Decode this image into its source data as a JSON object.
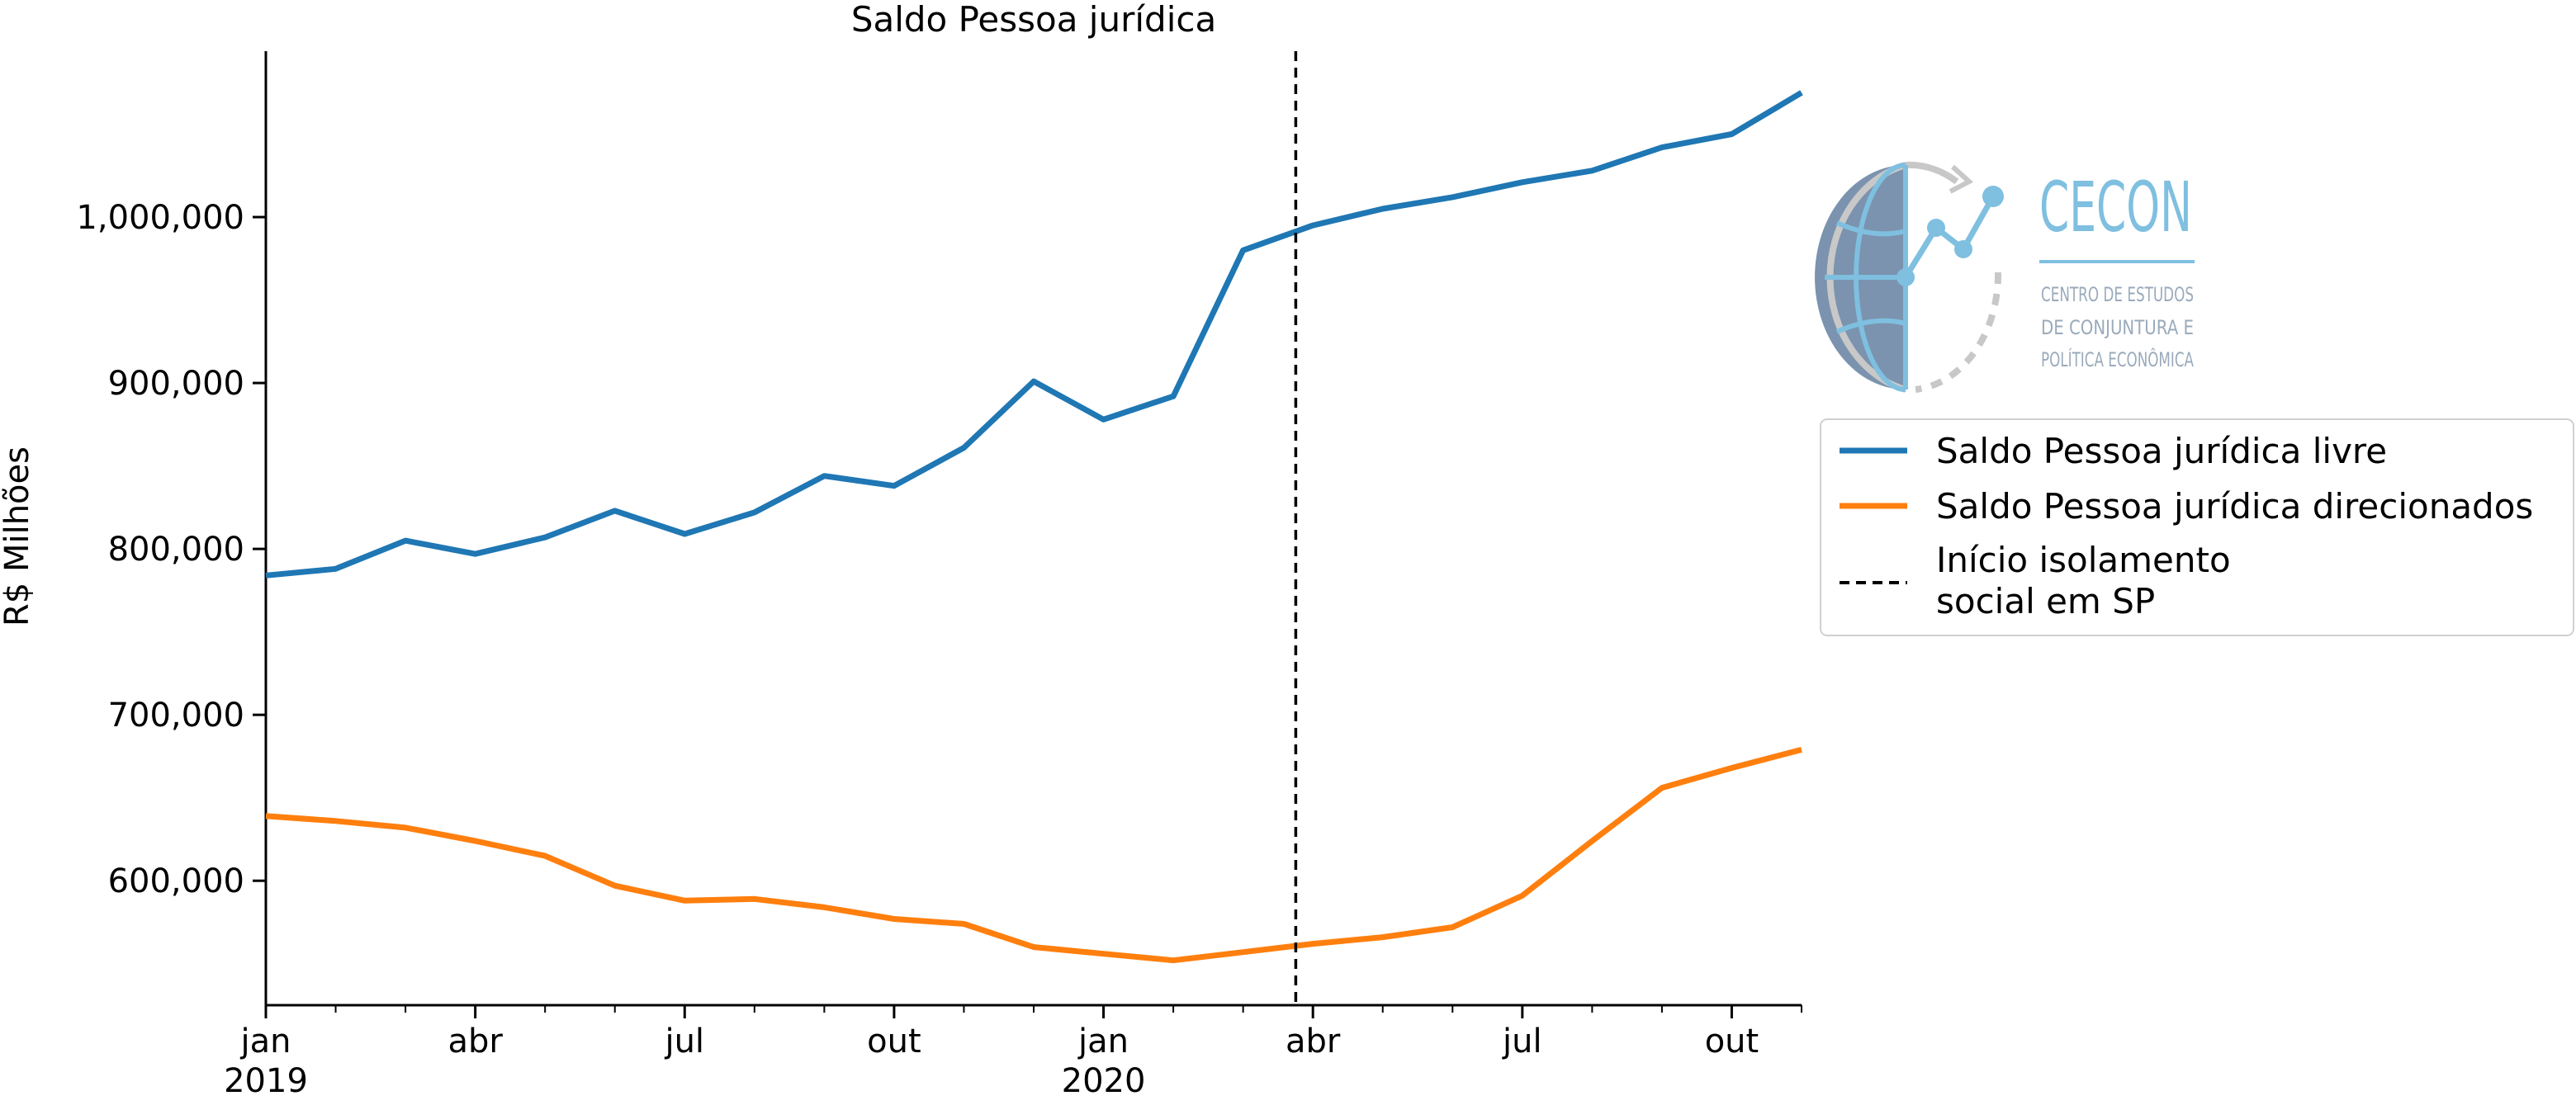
{
  "colors": {
    "series_livre": "#1f77b4",
    "series_direcionados": "#ff7f0e",
    "vline": "#000000",
    "logo_blue": "#7fbfe0",
    "logo_dark": "#4f6f93",
    "logo_gray": "#c8c8c8"
  },
  "logo": {
    "name": "CECON",
    "line1": "CENTRO DE ESTUDOS",
    "line2": "DE CONJUNTURA E",
    "line3": "POLÍTICA ECONÔMICA",
    "icon": "globe-chart-icon"
  },
  "chart_data": {
    "type": "line",
    "title": "Saldo Pessoa jurídica",
    "xlabel": "",
    "ylabel": "R$ Milhões",
    "x_start": "2019-01",
    "x_end": "2020-11",
    "ylim": [
      525000,
      1100000
    ],
    "yticks": [
      600000,
      700000,
      800000,
      900000,
      1000000
    ],
    "ytick_labels": [
      "600,000",
      "700,000",
      "800,000",
      "900,000",
      "1,000,000"
    ],
    "xticks_major": [
      {
        "x": "2019-01",
        "label": "jan",
        "year": "2019"
      },
      {
        "x": "2019-04",
        "label": "abr",
        "year": ""
      },
      {
        "x": "2019-07",
        "label": "jul",
        "year": ""
      },
      {
        "x": "2019-10",
        "label": "out",
        "year": ""
      },
      {
        "x": "2020-01",
        "label": "jan",
        "year": "2020"
      },
      {
        "x": "2020-04",
        "label": "abr",
        "year": ""
      },
      {
        "x": "2020-07",
        "label": "jul",
        "year": ""
      },
      {
        "x": "2020-10",
        "label": "out",
        "year": ""
      }
    ],
    "grid": false,
    "legend_position": "right",
    "x": [
      "2019-01",
      "2019-02",
      "2019-03",
      "2019-04",
      "2019-05",
      "2019-06",
      "2019-07",
      "2019-08",
      "2019-09",
      "2019-10",
      "2019-11",
      "2019-12",
      "2020-01",
      "2020-02",
      "2020-03",
      "2020-04",
      "2020-05",
      "2020-06",
      "2020-07",
      "2020-08",
      "2020-09",
      "2020-10",
      "2020-11"
    ],
    "series": [
      {
        "name": "Saldo Pessoa jurídica livre",
        "values": [
          784000,
          788000,
          805000,
          797000,
          807000,
          823000,
          809000,
          822000,
          844000,
          838000,
          861000,
          901000,
          878000,
          892000,
          980000,
          995000,
          1005000,
          1012000,
          1021000,
          1028000,
          1042000,
          1050000,
          1075000
        ]
      },
      {
        "name": "Saldo Pessoa jurídica direcionados",
        "values": [
          639000,
          636000,
          632000,
          624000,
          615000,
          597000,
          588000,
          589000,
          584000,
          577000,
          574000,
          560000,
          556000,
          552000,
          557000,
          562000,
          566000,
          572000,
          591000,
          624000,
          656000,
          668000,
          679000
        ]
      }
    ],
    "vline": {
      "x": "2020-03-24",
      "label_line1": "Início isolamento",
      "label_line2": "social em SP"
    }
  }
}
